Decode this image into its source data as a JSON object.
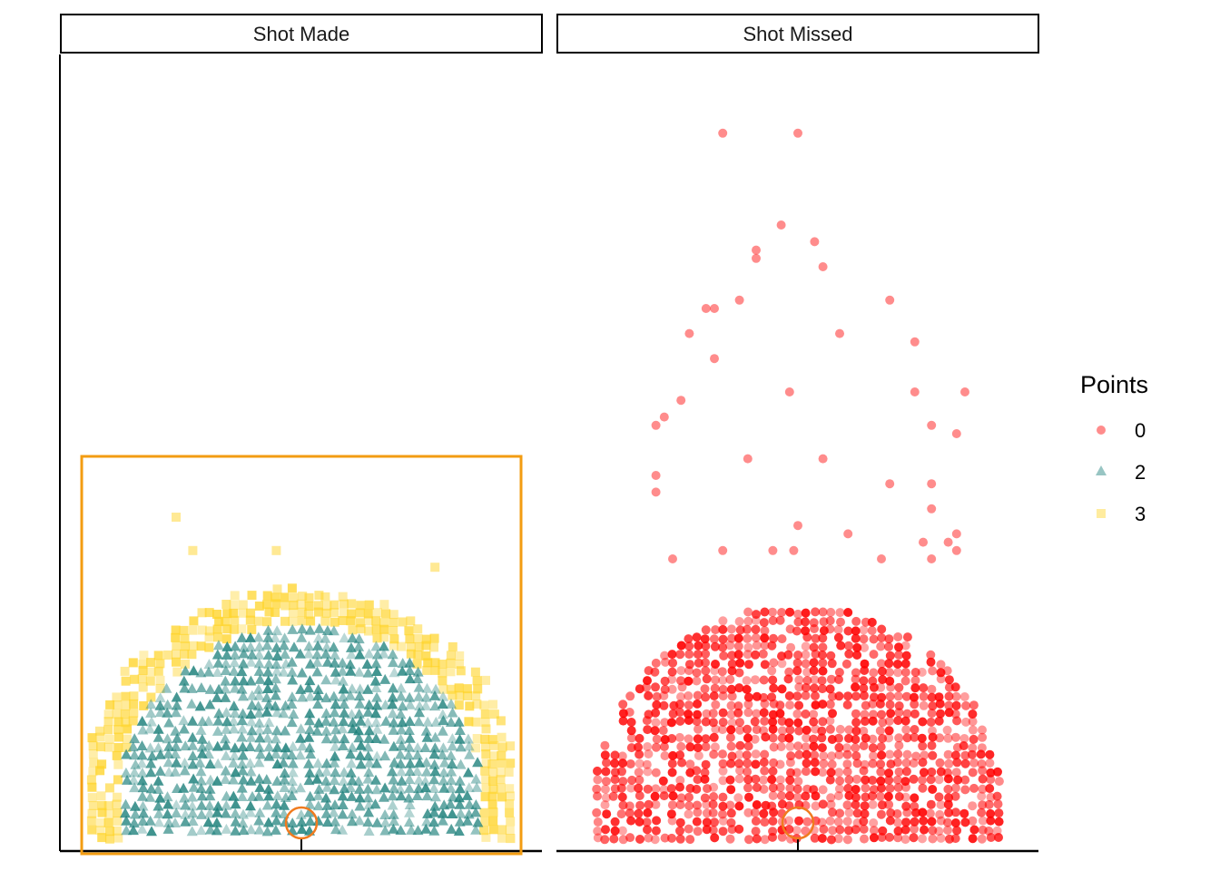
{
  "chart_data": {
    "type": "scatter",
    "facets": [
      "Shot Made",
      "Shot Missed"
    ],
    "legend": {
      "title": "Points",
      "position": "right",
      "entries": [
        {
          "label": "0",
          "shape": "circle",
          "color": "#ff0000"
        },
        {
          "label": "2",
          "shape": "triangle",
          "color": "#1b7f7a"
        },
        {
          "label": "3",
          "shape": "square",
          "color": "#ffd42a"
        }
      ]
    },
    "xlim": [
      -28,
      28
    ],
    "ylim": [
      -1,
      94
    ],
    "grid": false,
    "colors": {
      "made_box": "#f39c12",
      "hoop": "#f07b1f",
      "zero": "#ff0000",
      "two": "#1b7f7a",
      "three": "#ffd42a"
    },
    "court": {
      "hoop": {
        "x": 0,
        "y": 4
      },
      "box": {
        "x": [
          -25,
          25
        ],
        "y": [
          -1,
          44
        ]
      }
    },
    "made_three": {
      "arc_radius": [
        22.2,
        25.5
      ],
      "extra": [
        [
          -15,
          39
        ],
        [
          -13,
          35
        ],
        [
          -3,
          35
        ],
        [
          16,
          33
        ]
      ]
    },
    "made_two": {
      "max_radius": 22
    },
    "missed": {
      "arc_radius": [
        21,
        24.5
      ],
      "outliers": [
        [
          -9,
          85
        ],
        [
          0,
          85
        ],
        [
          -2,
          74
        ],
        [
          2,
          72
        ],
        [
          -5,
          71
        ],
        [
          -5,
          70
        ],
        [
          3,
          69
        ],
        [
          -7,
          65
        ],
        [
          -10,
          64
        ],
        [
          -11,
          64
        ],
        [
          11,
          65
        ],
        [
          -13,
          61
        ],
        [
          5,
          61
        ],
        [
          14,
          60
        ],
        [
          -10,
          58
        ],
        [
          -14,
          53
        ],
        [
          -1,
          54
        ],
        [
          14,
          54
        ],
        [
          20,
          54
        ],
        [
          -16,
          51
        ],
        [
          -17,
          50
        ],
        [
          16,
          50
        ],
        [
          19,
          49
        ],
        [
          -6,
          46
        ],
        [
          3,
          46
        ],
        [
          -17,
          44
        ],
        [
          -17,
          42
        ],
        [
          11,
          43
        ],
        [
          16,
          43
        ],
        [
          16,
          40
        ],
        [
          0,
          38
        ],
        [
          6,
          37
        ],
        [
          19,
          37
        ],
        [
          15,
          36
        ],
        [
          18,
          36
        ],
        [
          19,
          35
        ],
        [
          -9,
          35
        ],
        [
          -3,
          35
        ],
        [
          -0.5,
          35
        ],
        [
          10,
          34
        ],
        [
          16,
          34
        ],
        [
          -15,
          34
        ]
      ]
    }
  }
}
